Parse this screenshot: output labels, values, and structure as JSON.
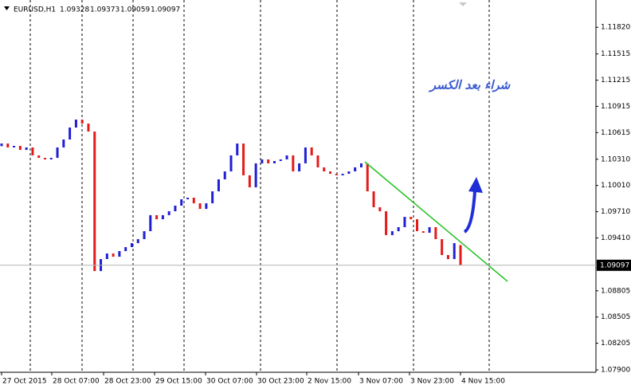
{
  "chart_data": {
    "type": "candlestick",
    "title": "EURUSD,H1",
    "header": {
      "open": 1.09328,
      "high": 1.09373,
      "low": 1.09059,
      "close": 1.09097
    },
    "annotation": "شراء بعد الكسر",
    "x_labels": [
      "27 Oct 2015",
      "28 Oct 07:00",
      "28 Oct 23:00",
      "29 Oct 15:00",
      "30 Oct 07:00",
      "30 Oct 23:00",
      "2 Nov 15:00",
      "3 Nov 07:00",
      "3 Nov 23:00",
      "4 Nov 15:00"
    ],
    "ylim": [
      1.07873,
      1.12132
    ],
    "yticks": [
      {
        "value": 1.1182,
        "label": "1.11820"
      },
      1.11515,
      1.11215,
      1.10915,
      1.10615,
      {
        "value": 1.1031,
        "label": "1.10310"
      },
      {
        "value": 1.1001,
        "label": "1.10010"
      },
      {
        "value": 1.0971,
        "label": "1.09710"
      },
      {
        "value": 1.0941,
        "label": "1.09410"
      },
      1.08805,
      1.08505,
      1.08205,
      {
        "value": 1.079,
        "label": "1.07900"
      }
    ],
    "up_color": "#1f1fd6",
    "down_color": "#e41a1a",
    "open": [
      1.1046,
      1.1049,
      1.10445,
      1.10463,
      1.10417,
      1.10445,
      1.10354,
      1.10326,
      1.10308,
      1.10326,
      1.10445,
      1.10536,
      1.10673,
      1.10764,
      1.10718,
      1.10627,
      1.09031,
      1.09168,
      1.09232,
      1.09195,
      1.09259,
      1.09305,
      1.0935,
      1.09396,
      1.09487,
      1.0967,
      1.09624,
      1.0967,
      1.09715,
      1.09779,
      1.09852,
      1.0987,
      1.09806,
      1.09742,
      1.09806,
      1.09943,
      1.1008,
      1.10171,
      1.10354,
      1.1049,
      1.10126,
      1.09989,
      1.10263,
      1.10308,
      1.10263,
      1.1029,
      1.10308,
      1.10354,
      1.10171,
      1.10263,
      1.10445,
      1.10354,
      1.10217,
      1.10171,
      1.10144,
      1.10126,
      1.10144,
      1.10171,
      1.10217,
      1.10263,
      1.09943,
      1.09761,
      1.09715,
      1.09442,
      1.09487,
      1.09533,
      1.09651,
      1.09624,
      1.09487,
      1.09469,
      1.09533,
      1.09396,
      1.09214,
      1.09168,
      1.09328
    ],
    "close": [
      1.1049,
      1.10445,
      1.10463,
      1.10417,
      1.10445,
      1.10354,
      1.10326,
      1.10308,
      1.10326,
      1.10445,
      1.10536,
      1.10673,
      1.10764,
      1.10718,
      1.10627,
      1.09031,
      1.09168,
      1.09232,
      1.09195,
      1.09259,
      1.09305,
      1.0935,
      1.09396,
      1.09487,
      1.0967,
      1.09624,
      1.0967,
      1.09715,
      1.09779,
      1.09852,
      1.0987,
      1.09806,
      1.09742,
      1.09806,
      1.09943,
      1.1008,
      1.10171,
      1.10354,
      1.1049,
      1.10126,
      1.09989,
      1.10263,
      1.10308,
      1.10263,
      1.1029,
      1.10308,
      1.10354,
      1.10171,
      1.10263,
      1.10445,
      1.10354,
      1.10217,
      1.10171,
      1.10144,
      1.10126,
      1.10144,
      1.10171,
      1.10217,
      1.10263,
      1.09943,
      1.09761,
      1.09715,
      1.09442,
      1.09487,
      1.09533,
      1.09651,
      1.09624,
      1.09487,
      1.09469,
      1.09533,
      1.09396,
      1.09214,
      1.09168,
      1.0935,
      1.09097
    ]
  }
}
